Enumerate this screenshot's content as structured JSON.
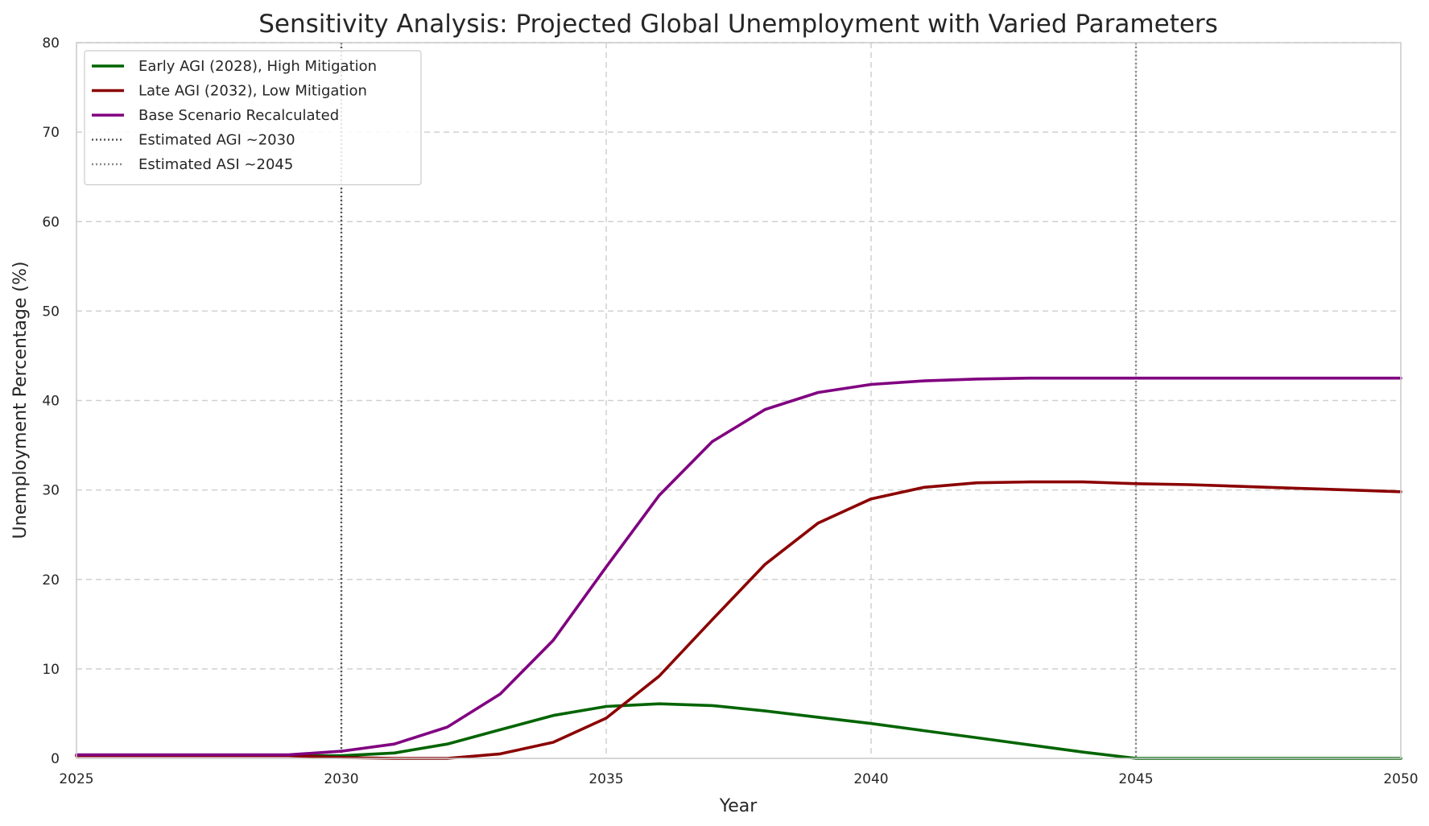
{
  "chart_data": {
    "type": "line",
    "title": "Sensitivity Analysis: Projected Global Unemployment with Varied Parameters",
    "xlabel": "Year",
    "ylabel": "Unemployment Percentage (%)",
    "xlim": [
      2025,
      2050
    ],
    "ylim": [
      0,
      80
    ],
    "xticks": [
      2025,
      2030,
      2035,
      2040,
      2045,
      2050
    ],
    "yticks": [
      0,
      10,
      20,
      30,
      40,
      50,
      60,
      70,
      80
    ],
    "grid": true,
    "legend_position": "top-left",
    "x": [
      2025,
      2026,
      2027,
      2028,
      2029,
      2030,
      2031,
      2032,
      2033,
      2034,
      2035,
      2036,
      2037,
      2038,
      2039,
      2040,
      2041,
      2042,
      2043,
      2044,
      2045,
      2046,
      2047,
      2048,
      2049,
      2050
    ],
    "series": [
      {
        "name": "Early AGI (2028), High Mitigation",
        "color": "#006400",
        "style": "solid",
        "values": [
          0.3,
          0.3,
          0.3,
          0.3,
          0.3,
          0.3,
          0.6,
          1.6,
          3.2,
          4.8,
          5.8,
          6.1,
          5.9,
          5.3,
          4.6,
          3.9,
          3.1,
          2.3,
          1.5,
          0.7,
          0.0,
          0.0,
          0.0,
          0.0,
          0.0,
          0.0
        ]
      },
      {
        "name": "Late AGI (2032), Low Mitigation",
        "color": "#8b0000",
        "style": "solid",
        "values": [
          0.3,
          0.3,
          0.3,
          0.3,
          0.3,
          0.1,
          0.0,
          0.0,
          0.5,
          1.8,
          4.5,
          9.2,
          15.5,
          21.7,
          26.3,
          29.0,
          30.3,
          30.8,
          30.9,
          30.9,
          30.7,
          30.6,
          30.4,
          30.2,
          30.0,
          29.8
        ]
      },
      {
        "name": "Base Scenario Recalculated",
        "color": "#800080",
        "style": "solid",
        "values": [
          0.4,
          0.4,
          0.4,
          0.4,
          0.4,
          0.8,
          1.6,
          3.5,
          7.2,
          13.2,
          21.4,
          29.4,
          35.4,
          39.0,
          40.9,
          41.8,
          42.2,
          42.4,
          42.5,
          42.5,
          42.5,
          42.5,
          42.5,
          42.5,
          42.5,
          42.5
        ]
      }
    ],
    "vlines": [
      {
        "name": "Estimated AGI ~2030",
        "x": 2030,
        "color": "#555555",
        "style": "dotted"
      },
      {
        "name": "Estimated ASI ~2045",
        "x": 2045,
        "color": "#888888",
        "style": "dotted"
      }
    ]
  }
}
